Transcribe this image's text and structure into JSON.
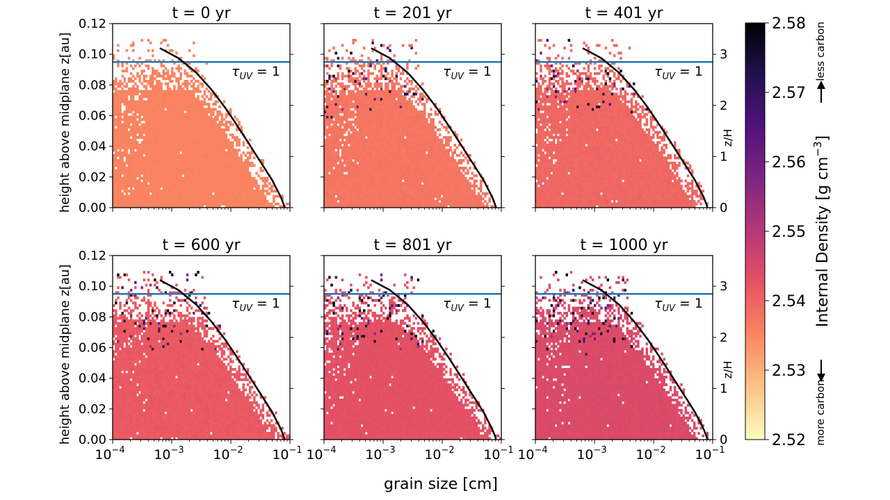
{
  "figure": {
    "xlabel": "grain size [cm]",
    "ylabel": "height above midplane z[au]",
    "right_ylabel": "z/H",
    "threshold_label": "τ",
    "threshold_sub": "UV",
    "threshold_suffix": " = 1"
  },
  "colorbar": {
    "label": "Internal Density [g cm",
    "label_exp": "−3",
    "label_close": "]",
    "more_label": "more carbon",
    "less_label": "less carbon",
    "range": [
      2.52,
      2.58
    ],
    "ticks": [
      "2.58",
      "2.57",
      "2.56",
      "2.55",
      "2.54",
      "2.53",
      "2.52"
    ],
    "colors": [
      "#fcfdbf",
      "#fec287",
      "#fb8761",
      "#e75263",
      "#b73779",
      "#7f2582",
      "#51127c",
      "#221150",
      "#000004"
    ]
  },
  "chart_data": [
    {
      "type": "heatmap",
      "title": "t = 0 yr",
      "time_yr": 0,
      "base_density": 2.5355,
      "scatter": 0.0008,
      "high_prob": 0.0,
      "x_scale": "log",
      "xlim": [
        0.0001,
        0.1
      ],
      "ylim": [
        0,
        0.12
      ],
      "z_over_H_lim": [
        0,
        3.6
      ],
      "tau_uv_1_height_au": 0.095,
      "xticks": [
        "10",
        "10",
        "10",
        "10"
      ],
      "xtick_exps": [
        "−4",
        "−3",
        "−2",
        "−1"
      ],
      "yticks": [
        "0.00",
        "0.02",
        "0.04",
        "0.06",
        "0.08",
        "0.10",
        "0.12"
      ],
      "zticks": [
        "0",
        "1",
        "2",
        "3"
      ],
      "curve_a_cm": [
        0.00063,
        0.0013,
        0.0026,
        0.0047,
        0.0079,
        0.0126,
        0.02,
        0.0316,
        0.05,
        0.0708,
        0.0794,
        0.0813
      ],
      "curve_z_au": [
        0.104,
        0.0975,
        0.088,
        0.077,
        0.0655,
        0.054,
        0.042,
        0.03,
        0.018,
        0.0065,
        0.0015,
        0.0
      ]
    },
    {
      "type": "heatmap",
      "title": "t = 201 yr",
      "time_yr": 201,
      "base_density": 2.5375,
      "scatter": 0.0012,
      "high_prob": 0.1,
      "x_scale": "log",
      "xlim": [
        0.0001,
        0.1
      ],
      "ylim": [
        0,
        0.12
      ],
      "z_over_H_lim": [
        0,
        3.6
      ],
      "tau_uv_1_height_au": 0.095,
      "xticks": [
        "10",
        "10",
        "10",
        "10"
      ],
      "xtick_exps": [
        "−4",
        "−3",
        "−2",
        "−1"
      ],
      "yticks": [
        "0.00",
        "0.02",
        "0.04",
        "0.06",
        "0.08",
        "0.10",
        "0.12"
      ],
      "zticks": [
        "0",
        "1",
        "2",
        "3"
      ],
      "curve_a_cm": [
        0.00063,
        0.0013,
        0.0026,
        0.0047,
        0.0079,
        0.0126,
        0.02,
        0.0316,
        0.05,
        0.0708,
        0.0794,
        0.0813
      ],
      "curve_z_au": [
        0.104,
        0.0975,
        0.088,
        0.077,
        0.0655,
        0.054,
        0.042,
        0.03,
        0.018,
        0.0065,
        0.0015,
        0.0
      ]
    },
    {
      "type": "heatmap",
      "title": "t = 401 yr",
      "time_yr": 401,
      "base_density": 2.5395,
      "scatter": 0.0013,
      "high_prob": 0.12,
      "x_scale": "log",
      "xlim": [
        0.0001,
        0.1
      ],
      "ylim": [
        0,
        0.12
      ],
      "z_over_H_lim": [
        0,
        3.6
      ],
      "tau_uv_1_height_au": 0.095,
      "xticks": [
        "10",
        "10",
        "10",
        "10"
      ],
      "xtick_exps": [
        "−4",
        "−3",
        "−2",
        "−1"
      ],
      "yticks": [
        "0.00",
        "0.02",
        "0.04",
        "0.06",
        "0.08",
        "0.10",
        "0.12"
      ],
      "zticks": [
        "0",
        "1",
        "2",
        "3"
      ],
      "curve_a_cm": [
        0.00063,
        0.0013,
        0.0026,
        0.0047,
        0.0079,
        0.0126,
        0.02,
        0.0316,
        0.05,
        0.0708,
        0.0794,
        0.0813
      ],
      "curve_z_au": [
        0.104,
        0.0975,
        0.088,
        0.077,
        0.0655,
        0.054,
        0.042,
        0.03,
        0.018,
        0.0065,
        0.0015,
        0.0
      ]
    },
    {
      "type": "heatmap",
      "title": "t = 600 yr",
      "time_yr": 600,
      "base_density": 2.5415,
      "scatter": 0.0013,
      "high_prob": 0.14,
      "x_scale": "log",
      "xlim": [
        0.0001,
        0.1
      ],
      "ylim": [
        0,
        0.12
      ],
      "z_over_H_lim": [
        0,
        3.6
      ],
      "tau_uv_1_height_au": 0.095,
      "xticks": [
        "10",
        "10",
        "10",
        "10"
      ],
      "xtick_exps": [
        "−4",
        "−3",
        "−2",
        "−1"
      ],
      "yticks": [
        "0.00",
        "0.02",
        "0.04",
        "0.06",
        "0.08",
        "0.10",
        "0.12"
      ],
      "zticks": [
        "0",
        "1",
        "2",
        "3"
      ],
      "curve_a_cm": [
        0.00063,
        0.0013,
        0.0026,
        0.0047,
        0.0079,
        0.0126,
        0.02,
        0.0316,
        0.05,
        0.0708,
        0.0794,
        0.0813
      ],
      "curve_z_au": [
        0.104,
        0.0975,
        0.088,
        0.077,
        0.0655,
        0.054,
        0.042,
        0.03,
        0.018,
        0.0065,
        0.0015,
        0.0
      ]
    },
    {
      "type": "heatmap",
      "title": "t = 801 yr",
      "time_yr": 801,
      "base_density": 2.543,
      "scatter": 0.0013,
      "high_prob": 0.14,
      "x_scale": "log",
      "xlim": [
        0.0001,
        0.1
      ],
      "ylim": [
        0,
        0.12
      ],
      "z_over_H_lim": [
        0,
        3.6
      ],
      "tau_uv_1_height_au": 0.095,
      "xticks": [
        "10",
        "10",
        "10",
        "10"
      ],
      "xtick_exps": [
        "−4",
        "−3",
        "−2",
        "−1"
      ],
      "yticks": [
        "0.00",
        "0.02",
        "0.04",
        "0.06",
        "0.08",
        "0.10",
        "0.12"
      ],
      "zticks": [
        "0",
        "1",
        "2",
        "3"
      ],
      "curve_a_cm": [
        0.00063,
        0.0013,
        0.0026,
        0.0047,
        0.0079,
        0.0126,
        0.02,
        0.0316,
        0.05,
        0.0708,
        0.0794,
        0.0813
      ],
      "curve_z_au": [
        0.104,
        0.0975,
        0.088,
        0.077,
        0.0655,
        0.054,
        0.042,
        0.03,
        0.018,
        0.0065,
        0.0015,
        0.0
      ]
    },
    {
      "type": "heatmap",
      "title": "t = 1000 yr",
      "time_yr": 1000,
      "base_density": 2.5445,
      "scatter": 0.0013,
      "high_prob": 0.15,
      "x_scale": "log",
      "xlim": [
        0.0001,
        0.1
      ],
      "ylim": [
        0,
        0.12
      ],
      "z_over_H_lim": [
        0,
        3.6
      ],
      "tau_uv_1_height_au": 0.095,
      "xticks": [
        "10",
        "10",
        "10",
        "10"
      ],
      "xtick_exps": [
        "−4",
        "−3",
        "−2",
        "−1"
      ],
      "yticks": [
        "0.00",
        "0.02",
        "0.04",
        "0.06",
        "0.08",
        "0.10",
        "0.12"
      ],
      "zticks": [
        "0",
        "1",
        "2",
        "3"
      ],
      "curve_a_cm": [
        0.00063,
        0.0013,
        0.0026,
        0.0047,
        0.0079,
        0.0126,
        0.02,
        0.0316,
        0.05,
        0.0708,
        0.0794,
        0.0813
      ],
      "curve_z_au": [
        0.104,
        0.0975,
        0.088,
        0.077,
        0.0655,
        0.054,
        0.042,
        0.03,
        0.018,
        0.0065,
        0.0015,
        0.0
      ]
    }
  ]
}
